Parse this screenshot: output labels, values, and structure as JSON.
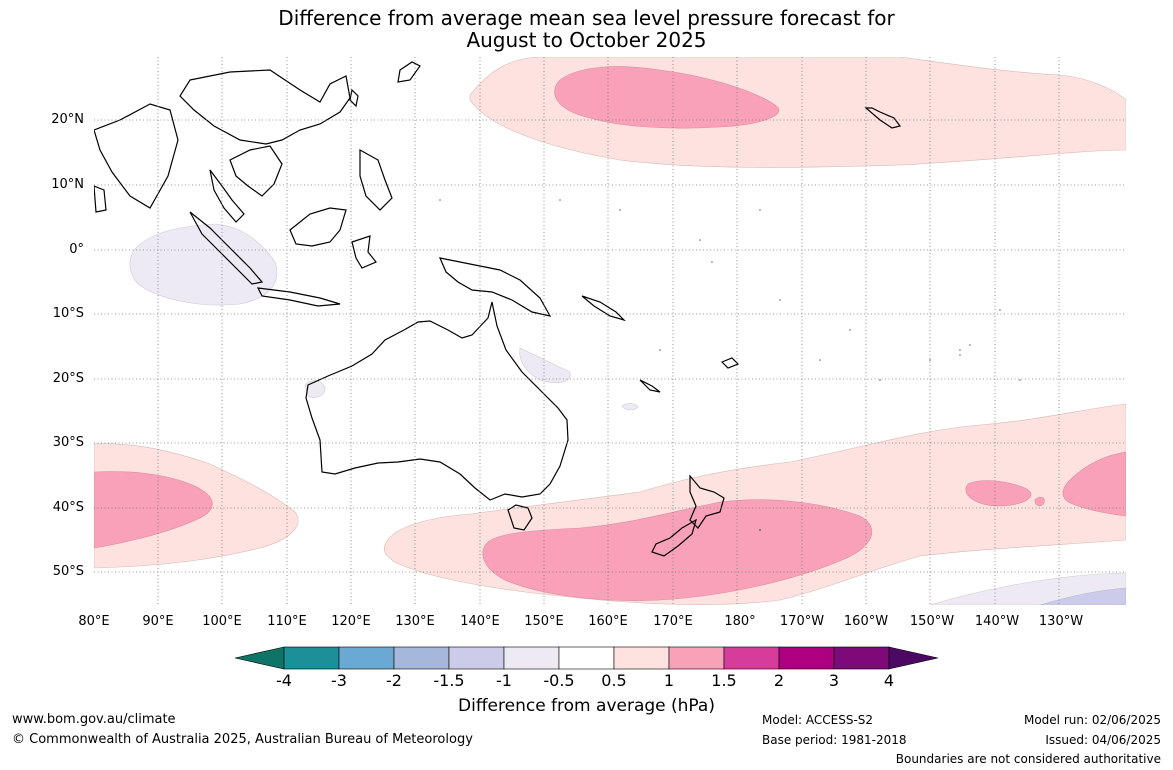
{
  "title": {
    "line1": "Difference from average mean sea level pressure forecast for",
    "line2": "August to October 2025"
  },
  "axes": {
    "lat_labels": [
      "20°N",
      "10°N",
      "0°",
      "10°S",
      "20°S",
      "30°S",
      "40°S",
      "50°S"
    ],
    "lon_labels": [
      "80°E",
      "90°E",
      "100°E",
      "110°E",
      "120°E",
      "130°E",
      "140°E",
      "150°E",
      "160°E",
      "170°E",
      "180°",
      "170°W",
      "160°W",
      "150°W",
      "140°W",
      "130°W"
    ],
    "lat_range": [
      -55,
      30
    ],
    "lon_range": [
      80,
      241
    ]
  },
  "colorbar": {
    "ticks": [
      "-4",
      "-3",
      "-2",
      "-1.5",
      "-1",
      "-0.5",
      "0.5",
      "1",
      "1.5",
      "2",
      "3",
      "4"
    ],
    "colors": [
      "#0e7468",
      "#1b9098",
      "#6aa9d2",
      "#a5b7da",
      "#ccccea",
      "#eeeaf4",
      "#ffffff",
      "#fde2df",
      "#f9a1b9",
      "#d63c9a",
      "#ad0080",
      "#7e0a7a",
      "#4d0863"
    ],
    "label": "Difference from average (hPa)"
  },
  "map_data": {
    "type": "filled-contour",
    "variable": "MSLP anomaly (hPa)",
    "regions": [
      {
        "area": "North Pacific ~20-25°N, 150°E-130°W",
        "level": "0.5 to 1"
      },
      {
        "area": "North Pacific ~22°N, 152-170°E",
        "level": "1 to 1.5"
      },
      {
        "area": "South Indian Ocean ~40°S, 80-100°E",
        "level": "0.5 to 1.5"
      },
      {
        "area": "Southern Ocean south of Australia & NZ ~45°S",
        "level": "0.5 to 1.5"
      },
      {
        "area": "South-east Pacific ~38°S, 125-130°W",
        "level": "1 to 1.5"
      },
      {
        "area": "Eastern Indian Ocean / Indonesia ~3°S",
        "level": "-0.5 to 0.5 (slightly negative)"
      },
      {
        "area": "Far south-east Pacific ~53°S",
        "level": "-1 to -0.5"
      }
    ]
  },
  "footer": {
    "website": "www.bom.gov.au/climate",
    "copyright": "© Commonwealth of Australia 2025, Australian Bureau of Meteorology",
    "model": "Model: ACCESS-S2",
    "base_period": "Base period: 1981-2018",
    "model_run": "Model run: 02/06/2025",
    "issued": "Issued: 04/06/2025",
    "disclaimer": "Boundaries are not considered authoritative"
  }
}
